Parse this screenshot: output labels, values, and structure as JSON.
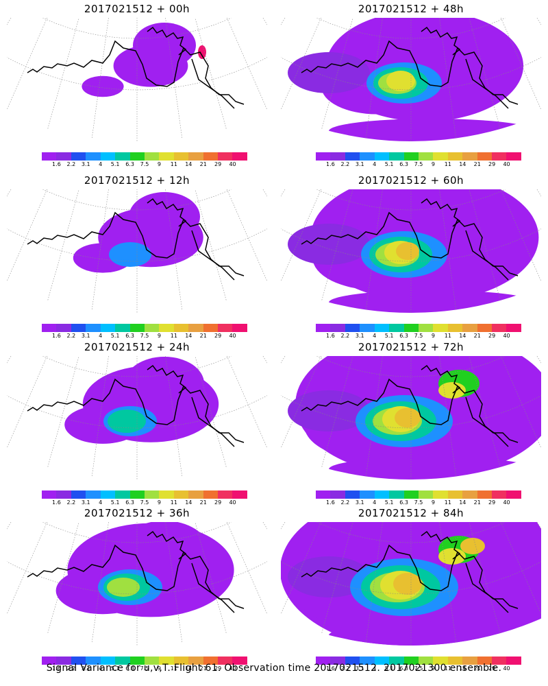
{
  "panels": [
    {
      "title": "2017021512 + 00h",
      "intensity": 1
    },
    {
      "title": "2017021512 + 12h",
      "intensity": 2
    },
    {
      "title": "2017021512 + 24h",
      "intensity": 3
    },
    {
      "title": "2017021512 + 36h",
      "intensity": 4
    },
    {
      "title": "2017021512 + 48h",
      "intensity": 5
    },
    {
      "title": "2017021512 + 60h",
      "intensity": 6
    },
    {
      "title": "2017021512 + 72h",
      "intensity": 7
    },
    {
      "title": "2017021512 + 84h",
      "intensity": 8
    }
  ],
  "colorbar": {
    "colors": [
      "#a020f0",
      "#8a2be2",
      "#2050f0",
      "#1e90ff",
      "#00bfff",
      "#00c8a0",
      "#20d020",
      "#a0e040",
      "#e0e030",
      "#e8c030",
      "#e8a040",
      "#f07030",
      "#f03060",
      "#f01070"
    ],
    "labels": [
      "1.6",
      "2.2",
      "3.1",
      "4",
      "5.1",
      "6.3",
      "7.5",
      "9",
      "11",
      "14",
      "21",
      "29",
      "40"
    ]
  },
  "footer": "Signal Variance for u,v,T. Flight 61. Observation time 2017021512. 2017021300 ensemble."
}
